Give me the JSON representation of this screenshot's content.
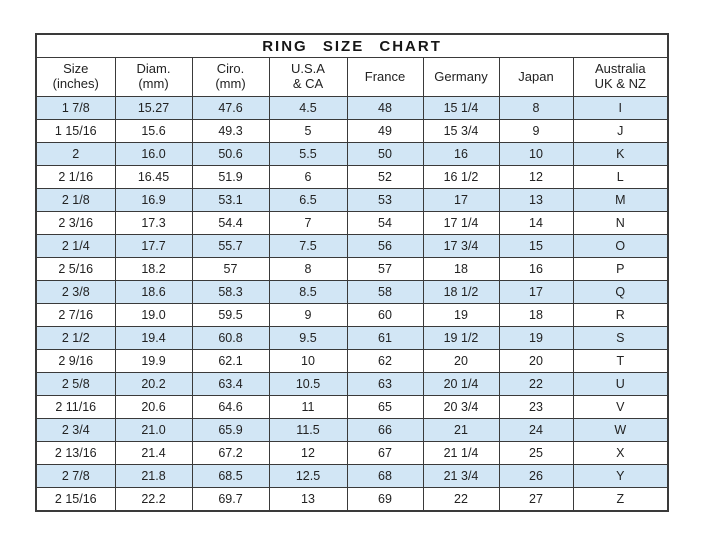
{
  "title": "RING SIZE CHART",
  "colors": {
    "stripe_blue": "#d2e6f5",
    "row_white": "#ffffff",
    "border": "#3a3a3a",
    "text": "#222222",
    "background": "#ffffff"
  },
  "chart_data": {
    "type": "table",
    "title": "RING SIZE CHART",
    "columns": [
      {
        "id": "size-inches",
        "label": "Size\n(inches)"
      },
      {
        "id": "diam-mm",
        "label": "Diam.\n(mm)"
      },
      {
        "id": "ciro-mm",
        "label": "Ciro.\n(mm)"
      },
      {
        "id": "usa-ca",
        "label": "U.S.A\n& CA"
      },
      {
        "id": "france",
        "label": "France"
      },
      {
        "id": "germany",
        "label": "Germany"
      },
      {
        "id": "japan",
        "label": "Japan"
      },
      {
        "id": "australia-uk-nz",
        "label": "Australia\nUK & NZ"
      }
    ],
    "rows": [
      [
        "1 7/8",
        "15.27",
        "47.6",
        "4.5",
        "48",
        "15 1/4",
        "8",
        "I"
      ],
      [
        "1 15/16",
        "15.6",
        "49.3",
        "5",
        "49",
        "15 3/4",
        "9",
        "J"
      ],
      [
        "2",
        "16.0",
        "50.6",
        "5.5",
        "50",
        "16",
        "10",
        "K"
      ],
      [
        "2 1/16",
        "16.45",
        "51.9",
        "6",
        "52",
        "16 1/2",
        "12",
        "L"
      ],
      [
        "2 1/8",
        "16.9",
        "53.1",
        "6.5",
        "53",
        "17",
        "13",
        "M"
      ],
      [
        "2 3/16",
        "17.3",
        "54.4",
        "7",
        "54",
        "17 1/4",
        "14",
        "N"
      ],
      [
        "2 1/4",
        "17.7",
        "55.7",
        "7.5",
        "56",
        "17 3/4",
        "15",
        "O"
      ],
      [
        "2 5/16",
        "18.2",
        "57",
        "8",
        "57",
        "18",
        "16",
        "P"
      ],
      [
        "2 3/8",
        "18.6",
        "58.3",
        "8.5",
        "58",
        "18 1/2",
        "17",
        "Q"
      ],
      [
        "2 7/16",
        "19.0",
        "59.5",
        "9",
        "60",
        "19",
        "18",
        "R"
      ],
      [
        "2 1/2",
        "19.4",
        "60.8",
        "9.5",
        "61",
        "19 1/2",
        "19",
        "S"
      ],
      [
        "2 9/16",
        "19.9",
        "62.1",
        "10",
        "62",
        "20",
        "20",
        "T"
      ],
      [
        "2 5/8",
        "20.2",
        "63.4",
        "10.5",
        "63",
        "20 1/4",
        "22",
        "U"
      ],
      [
        "2 11/16",
        "20.6",
        "64.6",
        "11",
        "65",
        "20 3/4",
        "23",
        "V"
      ],
      [
        "2 3/4",
        "21.0",
        "65.9",
        "11.5",
        "66",
        "21",
        "24",
        "W"
      ],
      [
        "2 13/16",
        "21.4",
        "67.2",
        "12",
        "67",
        "21 1/4",
        "25",
        "X"
      ],
      [
        "2 7/8",
        "21.8",
        "68.5",
        "12.5",
        "68",
        "21 3/4",
        "26",
        "Y"
      ],
      [
        "2 15/16",
        "22.2",
        "69.7",
        "13",
        "69",
        "22",
        "27",
        "Z"
      ]
    ],
    "layout": {
      "stripe_pattern": "odd rows (1st, 3rd, ...) light blue, even rows white",
      "grid": true
    }
  }
}
